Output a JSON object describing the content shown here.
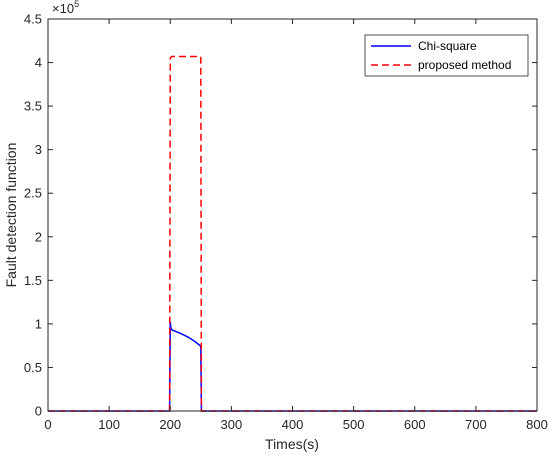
{
  "chart_data": {
    "type": "line",
    "xlabel": "Times(s)",
    "ylabel": "Fault detection function",
    "xlim": [
      0,
      800
    ],
    "ylim": [
      0,
      450000
    ],
    "x_ticks": [
      0,
      100,
      200,
      300,
      400,
      500,
      600,
      700,
      800
    ],
    "y_ticks": [
      0,
      50000,
      100000,
      150000,
      200000,
      250000,
      300000,
      350000,
      400000,
      450000
    ],
    "y_tick_labels": [
      "0",
      "0.5",
      "1",
      "1.5",
      "2",
      "2.5",
      "3",
      "3.5",
      "4",
      "4.5"
    ],
    "y_exponent_base": "×10",
    "y_exponent_power": "5",
    "grid": false,
    "legend_position": "top-right",
    "series": [
      {
        "name": "Chi-square",
        "color": "#0000ff",
        "dash": "solid",
        "points": [
          [
            0,
            0
          ],
          [
            199,
            0
          ],
          [
            200,
            102000
          ],
          [
            201,
            95000
          ],
          [
            203,
            93000
          ],
          [
            210,
            91000
          ],
          [
            220,
            88000
          ],
          [
            230,
            84500
          ],
          [
            240,
            80000
          ],
          [
            249,
            75000
          ],
          [
            250,
            74000
          ],
          [
            251,
            0
          ],
          [
            800,
            0
          ]
        ]
      },
      {
        "name": "proposed method",
        "color": "#ff0000",
        "dash": "dashed",
        "points": [
          [
            0,
            0
          ],
          [
            199,
            0
          ],
          [
            200,
            405000
          ],
          [
            202,
            407000
          ],
          [
            250,
            407000
          ],
          [
            251,
            0
          ],
          [
            800,
            0
          ]
        ]
      }
    ]
  }
}
